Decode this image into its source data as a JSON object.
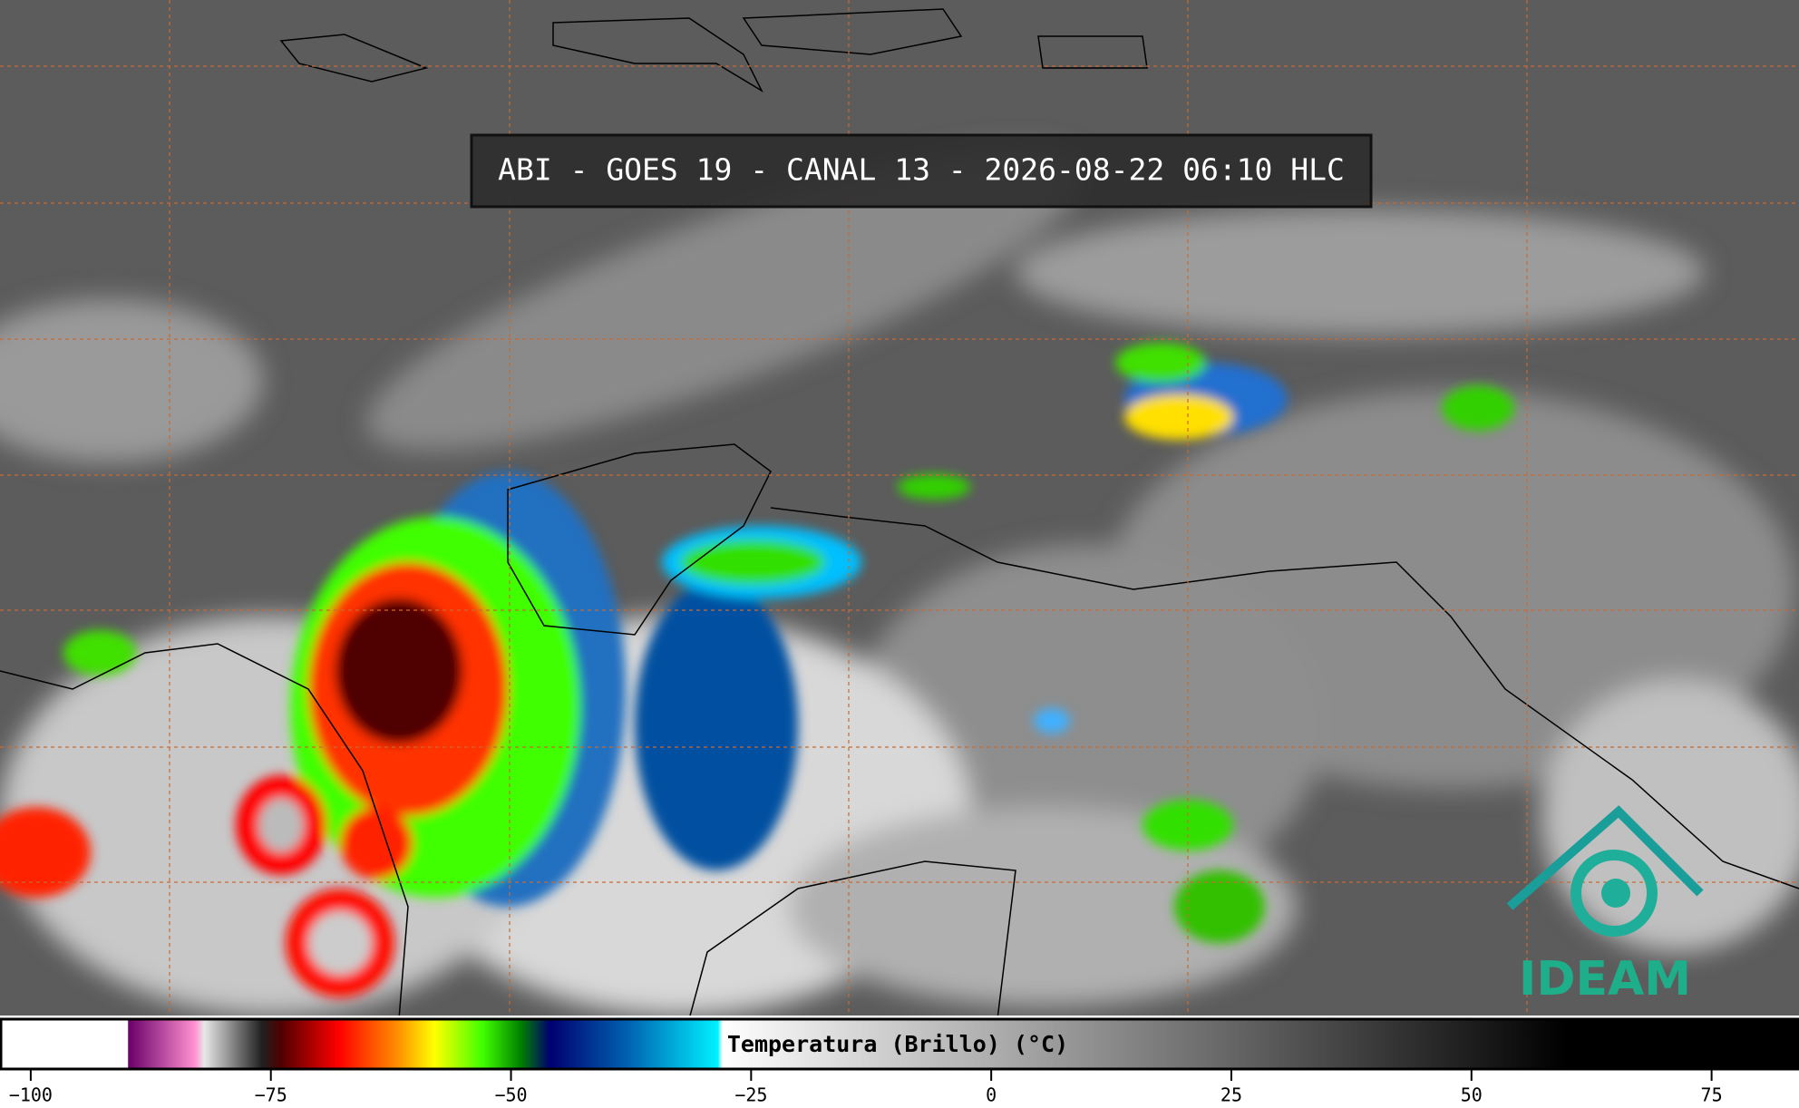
{
  "title": "ABI - GOES 19 - CANAL 13 - 2026-08-22 06:10 HLC",
  "logo": "IDEAM",
  "colorbar": {
    "label": "Temperatura (Brillo) (°C)",
    "xlim": [
      -103.2,
      84.1
    ],
    "xticks": [
      {
        "value": -100,
        "label": "−100"
      },
      {
        "value": -75,
        "label": "−75"
      },
      {
        "value": -50,
        "label": "−50"
      },
      {
        "value": -25,
        "label": "−25"
      },
      0,
      25,
      50,
      75
    ],
    "colormap": [
      {
        "value": -103.2,
        "color": "#ffffff"
      },
      {
        "value": -90,
        "color": "#ffffff"
      },
      {
        "value": -89.9,
        "color": "#6a006a"
      },
      {
        "value": -83,
        "color": "#ff90d0"
      },
      {
        "value": -82,
        "color": "#e8e8e8"
      },
      {
        "value": -76,
        "color": "#202020"
      },
      {
        "value": -74,
        "color": "#500000"
      },
      {
        "value": -68,
        "color": "#ff0000"
      },
      {
        "value": -62,
        "color": "#ff8c00"
      },
      {
        "value": -58,
        "color": "#ffff00"
      },
      {
        "value": -53,
        "color": "#40ff00"
      },
      {
        "value": -49,
        "color": "#008000"
      },
      {
        "value": -46,
        "color": "#000070"
      },
      {
        "value": -38,
        "color": "#0060b0"
      },
      {
        "value": -28.5,
        "color": "#00f0ff"
      },
      {
        "value": -28,
        "color": "#ffffff"
      },
      {
        "value": 60,
        "color": "#000000"
      },
      {
        "value": 84.1,
        "color": "#000000"
      }
    ]
  }
}
